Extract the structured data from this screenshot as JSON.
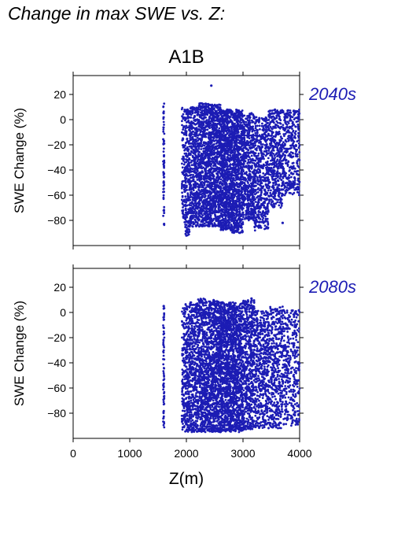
{
  "page": {
    "title": "Change in max SWE vs. Z:"
  },
  "chart_data": {
    "type": "scatter",
    "scenario": "A1B",
    "xlabel": "Z(m)",
    "ylabel": "SWE Change (%)",
    "xlim": [
      0,
      4000
    ],
    "ylim": [
      -100,
      35
    ],
    "xticks": [
      0,
      1000,
      2000,
      3000,
      4000
    ],
    "yticks": [
      20,
      0,
      -20,
      -40,
      -60,
      -80
    ],
    "point_color": "#1c1cb4",
    "label_color": "#1c1cb4",
    "panels": [
      {
        "period_label": "2040s",
        "clusters": [
          {
            "x_range": [
              1590,
              1610
            ],
            "y_range": [
              -85,
              13
            ],
            "n": 70
          },
          {
            "x_range": [
              1920,
              1980
            ],
            "y_range": [
              -82,
              10
            ],
            "n": 110
          },
          {
            "x_range": [
              1980,
              2060
            ],
            "y_range": [
              -92,
              10
            ],
            "n": 220
          },
          {
            "x_range": [
              2060,
              2200
            ],
            "y_range": [
              -85,
              10
            ],
            "n": 380
          },
          {
            "x_range": [
              2200,
              2400
            ],
            "y_range": [
              -85,
              13
            ],
            "n": 650
          },
          {
            "x_range": [
              2400,
              2600
            ],
            "y_range": [
              -85,
              12
            ],
            "n": 760
          },
          {
            "x_range": [
              2600,
              2800
            ],
            "y_range": [
              -88,
              8
            ],
            "n": 820
          },
          {
            "x_range": [
              2800,
              3000
            ],
            "y_range": [
              -90,
              8
            ],
            "n": 760
          },
          {
            "x_range": [
              3000,
              3200
            ],
            "y_range": [
              -80,
              5
            ],
            "n": 520
          },
          {
            "x_range": [
              3200,
              3450
            ],
            "y_range": [
              -88,
              2
            ],
            "n": 480
          },
          {
            "x_range": [
              3450,
              3700
            ],
            "y_range": [
              -70,
              8
            ],
            "n": 420
          },
          {
            "x_range": [
              3700,
              4000
            ],
            "y_range": [
              -60,
              8
            ],
            "n": 360
          }
        ],
        "outliers": [
          {
            "x": 2440,
            "y": 27
          },
          {
            "x": 2000,
            "y": -92
          },
          {
            "x": 3700,
            "y": -82
          },
          {
            "x": 3150,
            "y": 5
          }
        ]
      },
      {
        "period_label": "2080s",
        "clusters": [
          {
            "x_range": [
              1590,
              1610
            ],
            "y_range": [
              -94,
              5
            ],
            "n": 70
          },
          {
            "x_range": [
              1920,
              1980
            ],
            "y_range": [
              -94,
              5
            ],
            "n": 110
          },
          {
            "x_range": [
              1980,
              2060
            ],
            "y_range": [
              -95,
              7
            ],
            "n": 220
          },
          {
            "x_range": [
              2060,
              2200
            ],
            "y_range": [
              -95,
              8
            ],
            "n": 380
          },
          {
            "x_range": [
              2200,
              2400
            ],
            "y_range": [
              -95,
              11
            ],
            "n": 650
          },
          {
            "x_range": [
              2400,
              2600
            ],
            "y_range": [
              -95,
              10
            ],
            "n": 760
          },
          {
            "x_range": [
              2600,
              2800
            ],
            "y_range": [
              -95,
              8
            ],
            "n": 820
          },
          {
            "x_range": [
              2800,
              3000
            ],
            "y_range": [
              -95,
              8
            ],
            "n": 760
          },
          {
            "x_range": [
              3000,
              3200
            ],
            "y_range": [
              -93,
              10
            ],
            "n": 520
          },
          {
            "x_range": [
              3200,
              3450
            ],
            "y_range": [
              -92,
              2
            ],
            "n": 480
          },
          {
            "x_range": [
              3450,
              3700
            ],
            "y_range": [
              -92,
              5
            ],
            "n": 420
          },
          {
            "x_range": [
              3700,
              4000
            ],
            "y_range": [
              -90,
              2
            ],
            "n": 360
          }
        ],
        "outliers": [
          {
            "x": 3150,
            "y": 11
          },
          {
            "x": 1600,
            "y": 5
          }
        ]
      }
    ]
  }
}
